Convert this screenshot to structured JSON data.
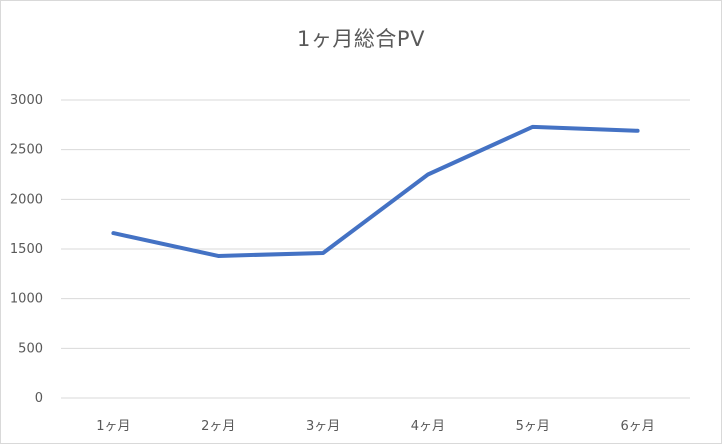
{
  "chart_data": {
    "type": "line",
    "title": "1ヶ月総合PV",
    "xlabel": "",
    "ylabel": "",
    "categories": [
      "1ヶ月",
      "2ヶ月",
      "3ヶ月",
      "4ヶ月",
      "5ヶ月",
      "6ヶ月"
    ],
    "series": [
      {
        "values": [
          1660,
          1430,
          1460,
          2250,
          2730,
          2690
        ],
        "color": "#4472c4"
      }
    ],
    "ylim": [
      0,
      3000
    ],
    "yticks": [
      0,
      500,
      1000,
      1500,
      2000,
      2500,
      3000
    ],
    "grid": true,
    "legend": "none"
  }
}
